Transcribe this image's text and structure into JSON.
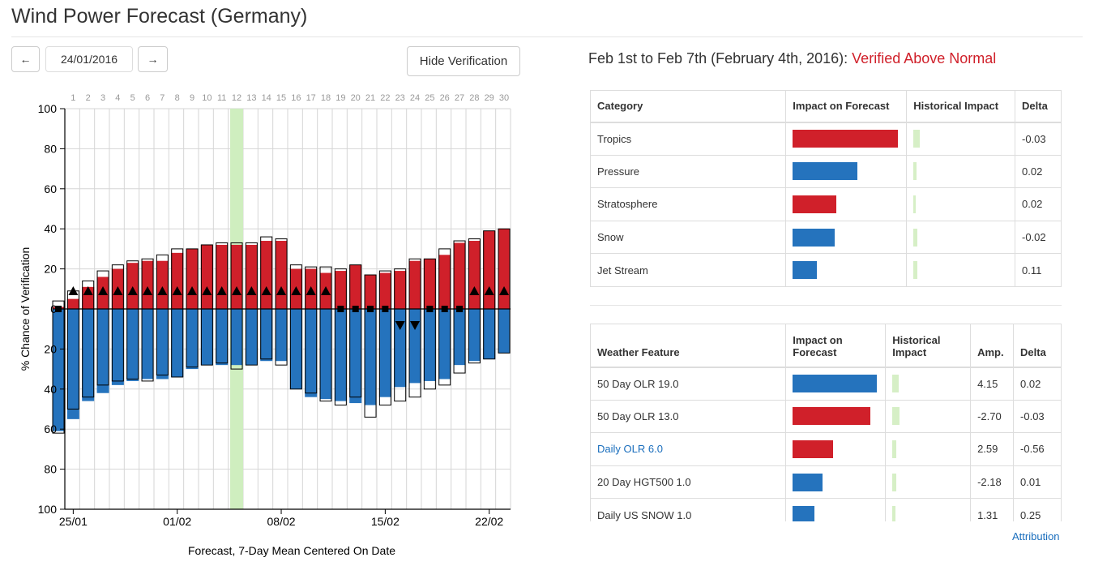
{
  "header": {
    "title": "Wind Power Forecast (Germany)"
  },
  "controls": {
    "prev_label": "←",
    "next_label": "→",
    "date": "24/01/2016",
    "hide_verification_label": "Hide Verification"
  },
  "colors": {
    "above": "#d0202a",
    "below": "#2573bd",
    "highlight": "#cfeebf",
    "grid": "#d6d6d6",
    "hist": "#d6efc6"
  },
  "chart_data": {
    "type": "bar",
    "title": "",
    "xlabel": "Forecast, 7-Day Mean Centered On Date",
    "ylabel": "% Chance of Verification",
    "ylim_above": [
      0,
      100
    ],
    "ylim_below": [
      0,
      100
    ],
    "y_ticks_above": [
      "100",
      "80",
      "60",
      "40",
      "20",
      "0"
    ],
    "y_ticks_below": [
      "20",
      "40",
      "60",
      "80",
      "100"
    ],
    "top_axis_labels": [
      "1",
      "2",
      "3",
      "4",
      "5",
      "6",
      "7",
      "8",
      "9",
      "10",
      "11",
      "12",
      "13",
      "14",
      "15",
      "16",
      "17",
      "18",
      "19",
      "20",
      "21",
      "22",
      "23",
      "24",
      "25",
      "26",
      "27",
      "28",
      "29",
      "30"
    ],
    "date_ticks": [
      {
        "label": "25/01",
        "index": 1
      },
      {
        "label": "01/02",
        "index": 8
      },
      {
        "label": "08/02",
        "index": 15
      },
      {
        "label": "15/02",
        "index": 22
      },
      {
        "label": "22/02",
        "index": 29
      }
    ],
    "highlight_index": 11,
    "series": [
      {
        "name": "Above",
        "values": [
          1,
          5,
          11,
          16,
          20,
          23,
          24,
          24,
          28,
          30,
          32,
          32,
          32,
          32,
          34,
          34,
          20,
          20,
          18,
          19,
          22,
          17,
          18,
          19,
          24,
          25,
          27,
          33,
          34,
          39,
          40
        ]
      },
      {
        "name": "Below",
        "values": [
          61,
          55,
          46,
          42,
          38,
          36,
          35,
          35,
          34,
          30,
          28,
          28,
          28,
          28,
          26,
          26,
          40,
          44,
          45,
          46,
          47,
          48,
          44,
          39,
          37,
          36,
          35,
          28,
          26,
          25,
          22
        ]
      },
      {
        "name": "Verification above",
        "values": [
          4,
          9,
          14,
          19,
          22,
          24,
          25,
          27,
          30,
          30,
          32,
          33,
          33,
          33,
          36,
          35,
          22,
          21,
          21,
          20,
          22,
          17,
          19,
          20,
          25,
          25,
          30,
          34,
          35,
          39,
          40
        ]
      },
      {
        "name": "Verification below",
        "values": [
          62,
          50,
          44,
          38,
          36,
          35,
          36,
          33,
          34,
          29,
          28,
          27,
          30,
          28,
          25,
          28,
          40,
          42,
          46,
          48,
          44,
          54,
          48,
          46,
          44,
          40,
          38,
          32,
          27,
          25,
          22
        ]
      }
    ],
    "markers": [
      "square",
      "up",
      "up",
      "up",
      "up",
      "up",
      "up",
      "up",
      "up",
      "up",
      "up",
      "up",
      "up",
      "up",
      "up",
      "up",
      "up",
      "up",
      "up",
      "square",
      "square",
      "square",
      "square",
      "down",
      "down",
      "square",
      "square",
      "square",
      "up",
      "up",
      "up"
    ],
    "grid": true
  },
  "period": {
    "heading": "Feb 1st to Feb 7th (February 4th, 2016): ",
    "status": "Verified Above Normal"
  },
  "category_table": {
    "headers": [
      "Category",
      "Impact on Forecast",
      "Historical Impact",
      "Delta"
    ],
    "rows": [
      {
        "name": "Tropics",
        "impact": 130,
        "impact_color": "red",
        "hist": 8,
        "delta": "-0.03"
      },
      {
        "name": "Pressure",
        "impact": 80,
        "impact_color": "blue",
        "hist": 4,
        "delta": "0.02"
      },
      {
        "name": "Stratosphere",
        "impact": 54,
        "impact_color": "red",
        "hist": 3,
        "delta": "0.02"
      },
      {
        "name": "Snow",
        "impact": 52,
        "impact_color": "blue",
        "hist": 5,
        "delta": "-0.02"
      },
      {
        "name": "Jet Stream",
        "impact": 30,
        "impact_color": "blue",
        "hist": 5,
        "delta": "0.11"
      }
    ]
  },
  "feature_table": {
    "headers": [
      "Weather Feature",
      "Impact on Forecast",
      "Historical Impact",
      "Amp.",
      "Delta"
    ],
    "rows": [
      {
        "name": "50 Day OLR 19.0",
        "link": false,
        "impact": 104,
        "impact_color": "blue",
        "hist": 8,
        "amp": "4.15",
        "delta": "0.02"
      },
      {
        "name": "50 Day OLR 13.0",
        "link": false,
        "impact": 96,
        "impact_color": "red",
        "hist": 9,
        "amp": "-2.70",
        "delta": "-0.03"
      },
      {
        "name": "Daily OLR 6.0",
        "link": true,
        "impact": 50,
        "impact_color": "red",
        "hist": 5,
        "amp": "2.59",
        "delta": "-0.56"
      },
      {
        "name": "20 Day HGT500 1.0",
        "link": false,
        "impact": 37,
        "impact_color": "blue",
        "hist": 5,
        "amp": "-2.18",
        "delta": "0.01"
      },
      {
        "name": "Daily US SNOW 1.0",
        "link": false,
        "impact": 27,
        "impact_color": "blue",
        "hist": 4,
        "amp": "1.31",
        "delta": "0.25"
      }
    ]
  },
  "footer": {
    "attribution": "Attribution"
  }
}
